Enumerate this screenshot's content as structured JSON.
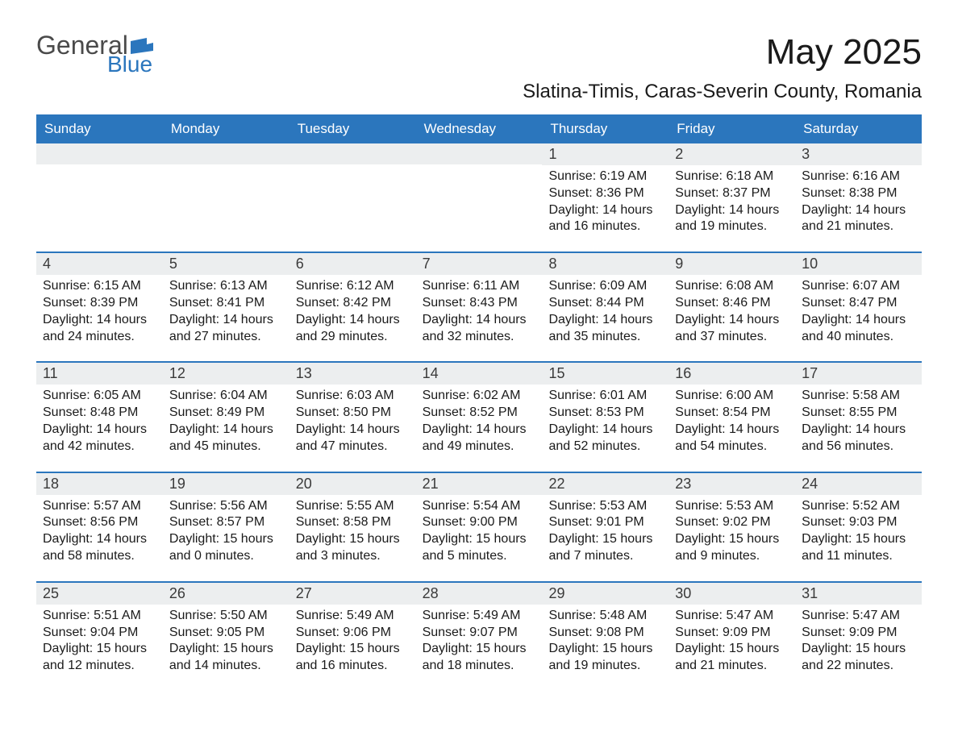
{
  "logo": {
    "general": "General",
    "blue": "Blue"
  },
  "title": "May 2025",
  "subtitle": "Slatina-Timis, Caras-Severin County, Romania",
  "colors": {
    "header_bg": "#2b76bd",
    "header_text": "#ffffff",
    "daynum_bg": "#eceeef",
    "text": "#1a1a1a",
    "logo_gray": "#4a4a4a",
    "logo_blue": "#2b76bd",
    "week_border": "#2b76bd",
    "background": "#ffffff"
  },
  "typography": {
    "title_fontsize": 44,
    "subtitle_fontsize": 24,
    "header_fontsize": 17,
    "daynum_fontsize": 18,
    "body_fontsize": 16,
    "font_family": "Arial"
  },
  "dow": [
    "Sunday",
    "Monday",
    "Tuesday",
    "Wednesday",
    "Thursday",
    "Friday",
    "Saturday"
  ],
  "weeks": [
    [
      null,
      null,
      null,
      null,
      {
        "n": "1",
        "sr": "Sunrise: 6:19 AM",
        "ss": "Sunset: 8:36 PM",
        "d1": "Daylight: 14 hours",
        "d2": "and 16 minutes."
      },
      {
        "n": "2",
        "sr": "Sunrise: 6:18 AM",
        "ss": "Sunset: 8:37 PM",
        "d1": "Daylight: 14 hours",
        "d2": "and 19 minutes."
      },
      {
        "n": "3",
        "sr": "Sunrise: 6:16 AM",
        "ss": "Sunset: 8:38 PM",
        "d1": "Daylight: 14 hours",
        "d2": "and 21 minutes."
      }
    ],
    [
      {
        "n": "4",
        "sr": "Sunrise: 6:15 AM",
        "ss": "Sunset: 8:39 PM",
        "d1": "Daylight: 14 hours",
        "d2": "and 24 minutes."
      },
      {
        "n": "5",
        "sr": "Sunrise: 6:13 AM",
        "ss": "Sunset: 8:41 PM",
        "d1": "Daylight: 14 hours",
        "d2": "and 27 minutes."
      },
      {
        "n": "6",
        "sr": "Sunrise: 6:12 AM",
        "ss": "Sunset: 8:42 PM",
        "d1": "Daylight: 14 hours",
        "d2": "and 29 minutes."
      },
      {
        "n": "7",
        "sr": "Sunrise: 6:11 AM",
        "ss": "Sunset: 8:43 PM",
        "d1": "Daylight: 14 hours",
        "d2": "and 32 minutes."
      },
      {
        "n": "8",
        "sr": "Sunrise: 6:09 AM",
        "ss": "Sunset: 8:44 PM",
        "d1": "Daylight: 14 hours",
        "d2": "and 35 minutes."
      },
      {
        "n": "9",
        "sr": "Sunrise: 6:08 AM",
        "ss": "Sunset: 8:46 PM",
        "d1": "Daylight: 14 hours",
        "d2": "and 37 minutes."
      },
      {
        "n": "10",
        "sr": "Sunrise: 6:07 AM",
        "ss": "Sunset: 8:47 PM",
        "d1": "Daylight: 14 hours",
        "d2": "and 40 minutes."
      }
    ],
    [
      {
        "n": "11",
        "sr": "Sunrise: 6:05 AM",
        "ss": "Sunset: 8:48 PM",
        "d1": "Daylight: 14 hours",
        "d2": "and 42 minutes."
      },
      {
        "n": "12",
        "sr": "Sunrise: 6:04 AM",
        "ss": "Sunset: 8:49 PM",
        "d1": "Daylight: 14 hours",
        "d2": "and 45 minutes."
      },
      {
        "n": "13",
        "sr": "Sunrise: 6:03 AM",
        "ss": "Sunset: 8:50 PM",
        "d1": "Daylight: 14 hours",
        "d2": "and 47 minutes."
      },
      {
        "n": "14",
        "sr": "Sunrise: 6:02 AM",
        "ss": "Sunset: 8:52 PM",
        "d1": "Daylight: 14 hours",
        "d2": "and 49 minutes."
      },
      {
        "n": "15",
        "sr": "Sunrise: 6:01 AM",
        "ss": "Sunset: 8:53 PM",
        "d1": "Daylight: 14 hours",
        "d2": "and 52 minutes."
      },
      {
        "n": "16",
        "sr": "Sunrise: 6:00 AM",
        "ss": "Sunset: 8:54 PM",
        "d1": "Daylight: 14 hours",
        "d2": "and 54 minutes."
      },
      {
        "n": "17",
        "sr": "Sunrise: 5:58 AM",
        "ss": "Sunset: 8:55 PM",
        "d1": "Daylight: 14 hours",
        "d2": "and 56 minutes."
      }
    ],
    [
      {
        "n": "18",
        "sr": "Sunrise: 5:57 AM",
        "ss": "Sunset: 8:56 PM",
        "d1": "Daylight: 14 hours",
        "d2": "and 58 minutes."
      },
      {
        "n": "19",
        "sr": "Sunrise: 5:56 AM",
        "ss": "Sunset: 8:57 PM",
        "d1": "Daylight: 15 hours",
        "d2": "and 0 minutes."
      },
      {
        "n": "20",
        "sr": "Sunrise: 5:55 AM",
        "ss": "Sunset: 8:58 PM",
        "d1": "Daylight: 15 hours",
        "d2": "and 3 minutes."
      },
      {
        "n": "21",
        "sr": "Sunrise: 5:54 AM",
        "ss": "Sunset: 9:00 PM",
        "d1": "Daylight: 15 hours",
        "d2": "and 5 minutes."
      },
      {
        "n": "22",
        "sr": "Sunrise: 5:53 AM",
        "ss": "Sunset: 9:01 PM",
        "d1": "Daylight: 15 hours",
        "d2": "and 7 minutes."
      },
      {
        "n": "23",
        "sr": "Sunrise: 5:53 AM",
        "ss": "Sunset: 9:02 PM",
        "d1": "Daylight: 15 hours",
        "d2": "and 9 minutes."
      },
      {
        "n": "24",
        "sr": "Sunrise: 5:52 AM",
        "ss": "Sunset: 9:03 PM",
        "d1": "Daylight: 15 hours",
        "d2": "and 11 minutes."
      }
    ],
    [
      {
        "n": "25",
        "sr": "Sunrise: 5:51 AM",
        "ss": "Sunset: 9:04 PM",
        "d1": "Daylight: 15 hours",
        "d2": "and 12 minutes."
      },
      {
        "n": "26",
        "sr": "Sunrise: 5:50 AM",
        "ss": "Sunset: 9:05 PM",
        "d1": "Daylight: 15 hours",
        "d2": "and 14 minutes."
      },
      {
        "n": "27",
        "sr": "Sunrise: 5:49 AM",
        "ss": "Sunset: 9:06 PM",
        "d1": "Daylight: 15 hours",
        "d2": "and 16 minutes."
      },
      {
        "n": "28",
        "sr": "Sunrise: 5:49 AM",
        "ss": "Sunset: 9:07 PM",
        "d1": "Daylight: 15 hours",
        "d2": "and 18 minutes."
      },
      {
        "n": "29",
        "sr": "Sunrise: 5:48 AM",
        "ss": "Sunset: 9:08 PM",
        "d1": "Daylight: 15 hours",
        "d2": "and 19 minutes."
      },
      {
        "n": "30",
        "sr": "Sunrise: 5:47 AM",
        "ss": "Sunset: 9:09 PM",
        "d1": "Daylight: 15 hours",
        "d2": "and 21 minutes."
      },
      {
        "n": "31",
        "sr": "Sunrise: 5:47 AM",
        "ss": "Sunset: 9:09 PM",
        "d1": "Daylight: 15 hours",
        "d2": "and 22 minutes."
      }
    ]
  ]
}
